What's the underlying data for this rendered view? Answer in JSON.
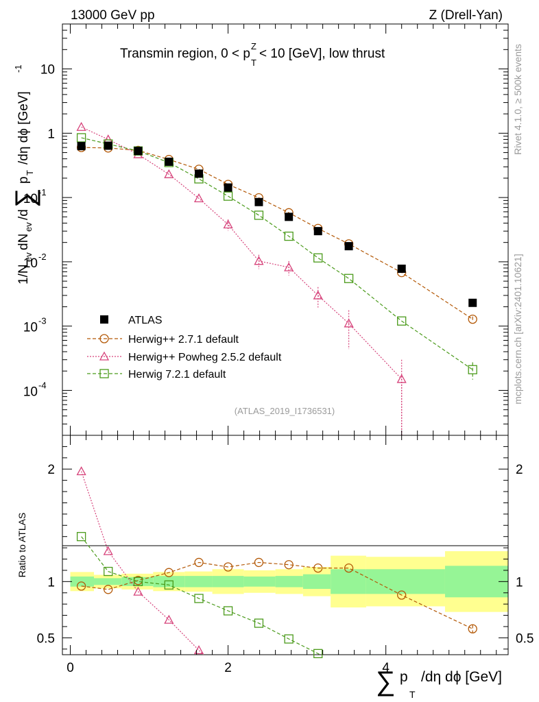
{
  "header": {
    "energy_label": "13000 GeV pp",
    "process_label": "Z (Drell-Yan)"
  },
  "side_text": {
    "rivet": "Rivet 4.1.0, ≥ 500k events",
    "mcplots": "mcplots.cern.ch [arXiv:2401.10621]"
  },
  "chart_data": {
    "type": "scatter",
    "title": "Transmin region, 0 < p_T^Z < 10 [GeV], low thrust",
    "analysis_id": "(ATLAS_2019_I1736531)",
    "xlabel": "Σ p_T /dη dϕ [GeV]",
    "ylabel": "1/N_ev dN_ev/dΣ p_T /dη dϕ [GeV]^-1",
    "ratio_ylabel": "Ratio to ATLAS",
    "xlim": [
      -0.1,
      5.55
    ],
    "ylim_main": [
      2e-05,
      50
    ],
    "ylim_ratio": [
      0.35,
      2.3
    ],
    "yscale_main": "log",
    "x_ticks": [
      "0",
      "2",
      "4"
    ],
    "y_ticks_main": [
      "10^-4",
      "10^-3",
      "10^-2",
      "10^-1",
      "1",
      "10"
    ],
    "y_ticks_ratio": [
      "0.5",
      "1",
      "2"
    ],
    "bin_edges": [
      0,
      0.3,
      0.65,
      1.05,
      1.45,
      1.8,
      2.2,
      2.6,
      2.95,
      3.3,
      3.75,
      4.75,
      5.55
    ],
    "x": [
      0.14,
      0.48,
      0.86,
      1.25,
      1.63,
      2.0,
      2.39,
      2.77,
      3.14,
      3.53,
      4.2,
      5.1
    ],
    "legend": {
      "position": "bottom-left",
      "entries": [
        "ATLAS",
        "Herwig++ 2.7.1 default",
        "Herwig++ Powheg 2.5.2 default",
        "Herwig 7.2.1 default"
      ]
    },
    "band_half_width_stat": [
      0.045,
      0.03,
      0.04,
      0.05,
      0.05,
      0.05,
      0.045,
      0.05,
      0.065,
      0.11,
      0.11,
      0.14
    ],
    "band_half_width_total": [
      0.085,
      0.06,
      0.07,
      0.085,
      0.09,
      0.11,
      0.1,
      0.11,
      0.13,
      0.23,
      0.22,
      0.27
    ],
    "series": [
      {
        "name": "ATLAS",
        "color": "#000000",
        "marker": "square-filled",
        "values": [
          0.63,
          0.64,
          0.53,
          0.36,
          0.235,
          0.143,
          0.085,
          0.05,
          0.03,
          0.0175,
          0.0078,
          0.0023
        ],
        "ratio": [
          1,
          1,
          1,
          1,
          1,
          1,
          1,
          1,
          1,
          1,
          1,
          1
        ],
        "errors": [
          0,
          0,
          0,
          0,
          0,
          0,
          0,
          0,
          0,
          0,
          0,
          0
        ]
      },
      {
        "name": "Herwig++ 2.7.1 default",
        "color": "#b35806",
        "marker": "circle",
        "line": "dashed",
        "values": [
          0.6,
          0.59,
          0.54,
          0.39,
          0.275,
          0.16,
          0.099,
          0.058,
          0.033,
          0.019,
          0.0068,
          0.00128
        ],
        "ratio": [
          0.96,
          0.93,
          1.01,
          1.08,
          1.17,
          1.13,
          1.17,
          1.15,
          1.12,
          1.12,
          0.88,
          0.58
        ],
        "errors": [
          0,
          0,
          0,
          0,
          0,
          0,
          0,
          0,
          0,
          0,
          0,
          0.1
        ]
      },
      {
        "name": "Herwig++ Powheg 2.5.2 default",
        "color": "#d6427a",
        "marker": "triangle",
        "line": "dotted",
        "values": [
          1.25,
          0.8,
          0.47,
          0.23,
          0.097,
          0.038,
          0.0103,
          0.0082,
          0.003,
          0.0011,
          0.00015,
          null
        ],
        "ratio": [
          1.98,
          1.27,
          0.91,
          0.66,
          0.39,
          null,
          null,
          null,
          null,
          null,
          null,
          null
        ],
        "errors": [
          0,
          0,
          0,
          0,
          0,
          0.2,
          0.25,
          0.25,
          0.35,
          0.6,
          1.0,
          0
        ]
      },
      {
        "name": "Herwig 7.2.1 default",
        "color": "#4a9a1a",
        "marker": "square",
        "line": "dashed",
        "values": [
          0.85,
          0.68,
          0.53,
          0.35,
          0.195,
          0.105,
          0.053,
          0.025,
          0.0115,
          0.0055,
          0.0012,
          0.00021
        ],
        "ratio": [
          1.4,
          1.09,
          1.0,
          0.97,
          0.85,
          0.74,
          0.63,
          0.49,
          0.36,
          null,
          null,
          null
        ],
        "errors": [
          0,
          0,
          0,
          0,
          0,
          0,
          0,
          0,
          0,
          0,
          0,
          0.3
        ]
      }
    ]
  }
}
